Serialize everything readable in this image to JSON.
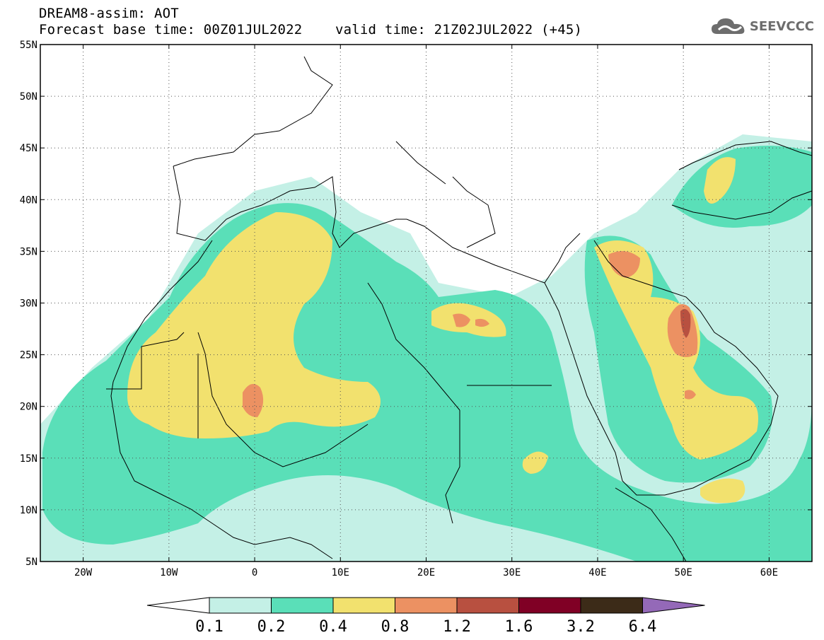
{
  "header": {
    "title_line1": "DREAM8-assim: AOT",
    "title_line2": "Forecast base time: 00Z01JUL2022    valid time: 21Z02JUL2022 (+45)",
    "logo_text": "SEEVCCC"
  },
  "map": {
    "lon_range": [
      -25,
      65
    ],
    "lat_range": [
      5,
      55
    ],
    "lat_ticks": [
      {
        "value": 55,
        "label": "55N"
      },
      {
        "value": 50,
        "label": "50N"
      },
      {
        "value": 45,
        "label": "45N"
      },
      {
        "value": 40,
        "label": "40N"
      },
      {
        "value": 35,
        "label": "35N"
      },
      {
        "value": 30,
        "label": "30N"
      },
      {
        "value": 25,
        "label": "25N"
      },
      {
        "value": 20,
        "label": "20N"
      },
      {
        "value": 15,
        "label": "15N"
      },
      {
        "value": 10,
        "label": "10N"
      },
      {
        "value": 5,
        "label": "5N"
      }
    ],
    "lon_ticks": [
      {
        "value": -20,
        "label": "20W"
      },
      {
        "value": -10,
        "label": "10W"
      },
      {
        "value": 0,
        "label": "0"
      },
      {
        "value": 10,
        "label": "10E"
      },
      {
        "value": 20,
        "label": "20E"
      },
      {
        "value": 30,
        "label": "30E"
      },
      {
        "value": 40,
        "label": "40E"
      },
      {
        "value": 50,
        "label": "50E"
      },
      {
        "value": 60,
        "label": "60E"
      }
    ],
    "grid": true
  },
  "colorbar": {
    "labels": [
      "0.1",
      "0.2",
      "0.4",
      "0.8",
      "1.2",
      "1.6",
      "3.2",
      "6.4"
    ],
    "colors": [
      "#ffffff",
      "#c4f0e6",
      "#5adfb8",
      "#f2e16e",
      "#ec9162",
      "#b85040",
      "#800025",
      "#3c2b18",
      "#9469b8"
    ]
  },
  "colors": {
    "level1": "#c4f0e6",
    "level2": "#5adfb8",
    "level3": "#f2e16e",
    "level4": "#ec9162",
    "level5": "#b85040"
  }
}
